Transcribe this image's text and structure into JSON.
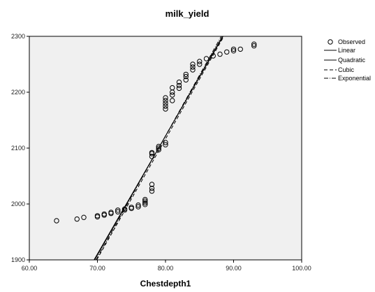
{
  "chart_data": {
    "type": "scatter",
    "title": "milk_yield",
    "xlabel": "Chestdepth1",
    "ylabel": "",
    "xlim": [
      60,
      100
    ],
    "ylim": [
      1900,
      2300
    ],
    "x_ticks": [
      "60.00",
      "70.00",
      "80.00",
      "90.00",
      "100.00"
    ],
    "y_ticks": [
      "1900",
      "2000",
      "2100",
      "2200",
      "2300"
    ],
    "plot_background": "#f0f0f0",
    "grid": false,
    "legend_position": "right",
    "legend": [
      "Observed",
      "Linear",
      "Quadratic",
      "Cubic",
      "Exponential"
    ],
    "series": [
      {
        "name": "Observed",
        "marker": "open-circle",
        "x": [
          64,
          67,
          68,
          70,
          70,
          71,
          71,
          72,
          72,
          73,
          73,
          74,
          74,
          75,
          75,
          76,
          76,
          77,
          77,
          77,
          77,
          78,
          78,
          78,
          78,
          78,
          78,
          79,
          79,
          79,
          80,
          80,
          80,
          80,
          80,
          80,
          80,
          81,
          81,
          81,
          81,
          82,
          82,
          82,
          83,
          83,
          83,
          84,
          84,
          84,
          85,
          85,
          86,
          87,
          88,
          89,
          90,
          90,
          91,
          93,
          93
        ],
        "y": [
          1970,
          1973,
          1976,
          1977,
          1979,
          1980,
          1982,
          1983,
          1985,
          1986,
          1989,
          1989,
          1991,
          1992,
          1994,
          1995,
          1998,
          1999,
          2002,
          2005,
          2008,
          2023,
          2028,
          2035,
          2085,
          2090,
          2092,
          2097,
          2100,
          2103,
          2106,
          2110,
          2170,
          2175,
          2180,
          2185,
          2190,
          2185,
          2195,
          2200,
          2208,
          2207,
          2212,
          2218,
          2222,
          2228,
          2232,
          2240,
          2245,
          2250,
          2250,
          2255,
          2260,
          2265,
          2268,
          2272,
          2274,
          2277,
          2277,
          2283,
          2286
        ]
      },
      {
        "name": "Linear",
        "line_style": "solid",
        "x": [
          69.5,
          89.5
        ],
        "y": [
          1900,
          2322
        ]
      },
      {
        "name": "Quadratic",
        "line_style": "solid",
        "x": [
          69.6,
          89.4
        ],
        "y": [
          1900,
          2322
        ]
      },
      {
        "name": "Cubic",
        "line_style": "dashed",
        "x": [
          69.9,
          89.6
        ],
        "y": [
          1900,
          2322
        ]
      },
      {
        "name": "Exponential",
        "line_style": "dash-dot",
        "x": [
          69.8,
          89.2
        ],
        "y": [
          1900,
          2322
        ]
      }
    ]
  }
}
